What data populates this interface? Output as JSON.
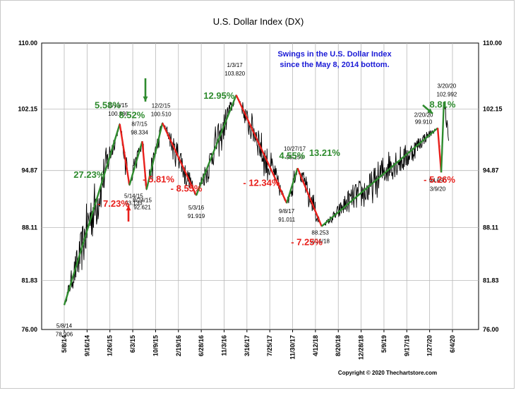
{
  "chart_data": {
    "type": "line",
    "title": "U.S. Dollar Index (DX)",
    "ylim": [
      76.0,
      110.0
    ],
    "yticks": [
      "76.00",
      "81.83",
      "88.11",
      "94.87",
      "102.15",
      "110.00"
    ],
    "xticks": [
      "5/8/14",
      "9/16/14",
      "1/26/15",
      "6/3/15",
      "10/9/15",
      "2/19/16",
      "6/28/16",
      "11/3/16",
      "3/16/17",
      "7/25/17",
      "11/30/17",
      "4/12/18",
      "8/20/18",
      "12/28/18",
      "5/9/19",
      "9/17/19",
      "1/27/20",
      "6/4/20"
    ],
    "note": [
      "Swings in the U.S. Dollar Index",
      "since the May 8, 2014 bottom."
    ],
    "copyright": "Copyright © 2020 Thechartstore.com",
    "pivots": [
      {
        "t": 0.0,
        "v": 78.906,
        "date": "5/8/14",
        "value_label": "78.906"
      },
      {
        "t": 0.143,
        "v": 100.39,
        "date": "3/13/15",
        "value_label": "100.390"
      },
      {
        "t": 0.168,
        "v": 93.133,
        "date": "5/14/15",
        "value_label": "93.133"
      },
      {
        "t": 0.201,
        "v": 98.334,
        "date": "8/7/15",
        "value_label": "98.334"
      },
      {
        "t": 0.212,
        "v": 92.621,
        "date": "8/24/15",
        "value_label": "92.621"
      },
      {
        "t": 0.253,
        "v": 100.51,
        "date": "12/2/15",
        "value_label": "100.510"
      },
      {
        "t": 0.34,
        "v": 91.919,
        "date": "5/3/16",
        "value_label": "91.919"
      },
      {
        "t": 0.443,
        "v": 103.82,
        "date": "1/3/17",
        "value_label": "103.820"
      },
      {
        "t": 0.573,
        "v": 91.011,
        "date": "9/8/17",
        "value_label": "91.011"
      },
      {
        "t": 0.601,
        "v": 95.15,
        "date": "10/27/17",
        "value_label": "95.150"
      },
      {
        "t": 0.663,
        "v": 88.253,
        "date": "2/16/18",
        "value_label": "88.253"
      },
      {
        "t": 0.962,
        "v": 99.91,
        "date": "2/20/20",
        "value_label": "99.910"
      },
      {
        "t": 0.971,
        "v": 94.65,
        "date": "3/9/20",
        "value_label": "94.650"
      },
      {
        "t": 0.978,
        "v": 102.992,
        "date": "3/20/20",
        "value_label": "102.992"
      },
      {
        "t": 0.99,
        "v": 98.4,
        "date": "",
        "value_label": ""
      }
    ],
    "swings": [
      {
        "label": "27.23%",
        "dir": "up"
      },
      {
        "label": "- 7.23%",
        "dir": "down"
      },
      {
        "label": "5.58%",
        "dir": "up"
      },
      {
        "label": "- 5.81%",
        "dir": "down"
      },
      {
        "label": "8.52%",
        "dir": "up"
      },
      {
        "label": "- 8.55%",
        "dir": "down"
      },
      {
        "label": "12.95%",
        "dir": "up"
      },
      {
        "label": "- 12.34%",
        "dir": "down"
      },
      {
        "label": "4.55%",
        "dir": "up"
      },
      {
        "label": "- 7.25%",
        "dir": "down"
      },
      {
        "label": "13.21%",
        "dir": "up"
      },
      {
        "label": "- 5.26%",
        "dir": "down"
      },
      {
        "label": "8.81%",
        "dir": "up"
      }
    ],
    "colors": {
      "up": "#2e8b2e",
      "down": "#e8201c",
      "price": "#000000",
      "grid": "#b8b8b8",
      "note": "#1a1ad6"
    }
  }
}
